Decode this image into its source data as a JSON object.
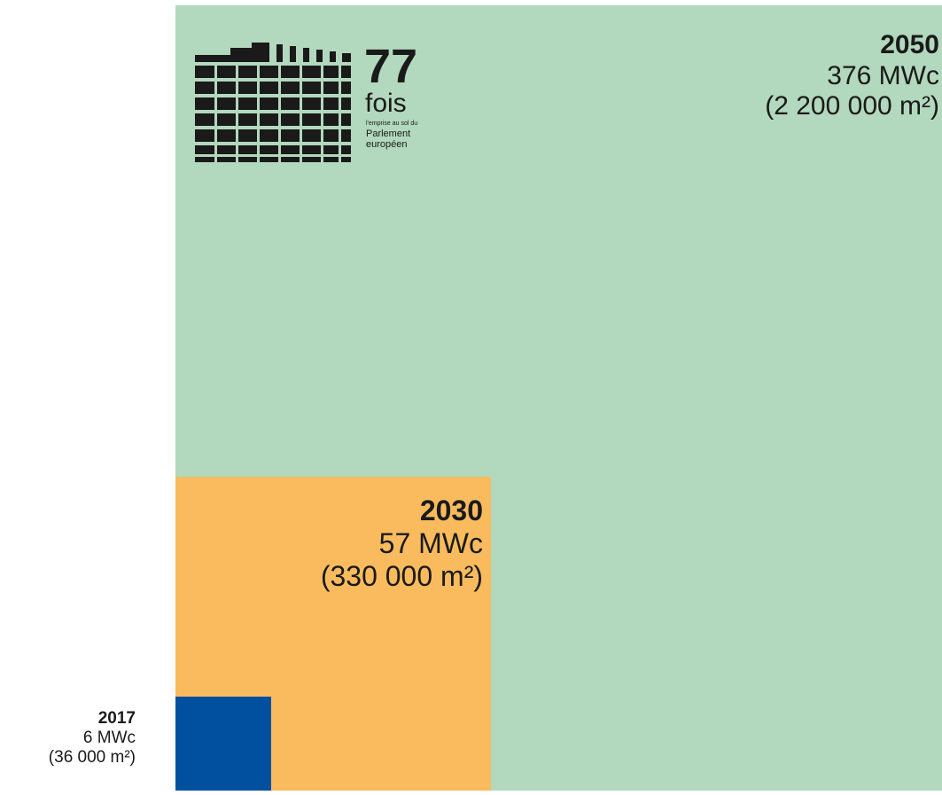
{
  "colors": {
    "2050": "#b2d8bd",
    "2030": "#f9bb5d",
    "2017": "#00509f"
  },
  "blocks": [
    {
      "year": "2050",
      "power": "376 MWc",
      "area": "(2 200 000 m²)",
      "power_mwc": 376,
      "area_m2": 2200000
    },
    {
      "year": "2030",
      "power": "57 MWc",
      "area": "(330 000 m²)",
      "power_mwc": 57,
      "area_m2": 330000
    },
    {
      "year": "2017",
      "power": "6 MWc",
      "area": "(36 000 m²)",
      "power_mwc": 6,
      "area_m2": 36000
    }
  ],
  "logo": {
    "icon": "parliament-building-icon",
    "number": "77",
    "word": "fois",
    "line1": "l'emprise au sol du",
    "line2": "Parlement",
    "line3": "européen"
  }
}
